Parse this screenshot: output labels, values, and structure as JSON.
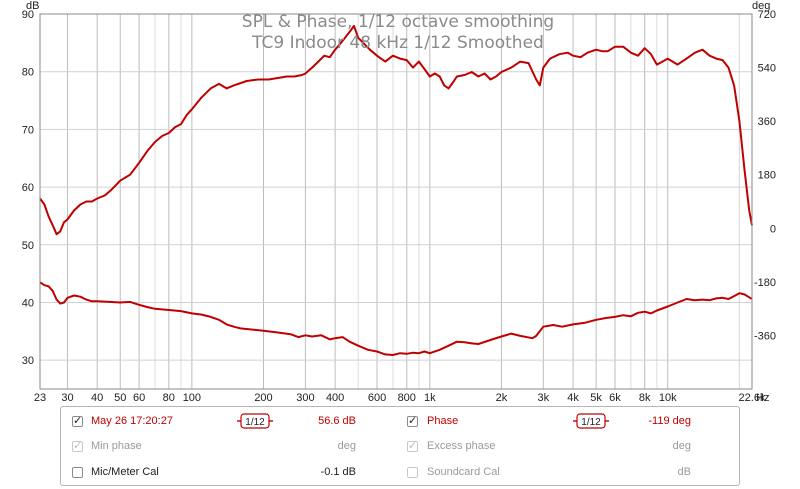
{
  "chart_data": {
    "type": "line",
    "title": "SPL & Phase, 1/12 octave smoothing",
    "subtitle": "TC9 Indoor 48 kHz 1/12 Smoothed",
    "left_axis_unit": "dB",
    "right_axis_unit": "deg",
    "x_unit": "Hz",
    "xscale": "log",
    "xlim": [
      23,
      22600
    ],
    "ylim_left": [
      25,
      90
    ],
    "ylim_right": [
      -540,
      720
    ],
    "grid": true,
    "x_ticks": [
      {
        "v": 23,
        "label": "23"
      },
      {
        "v": 30,
        "label": "30"
      },
      {
        "v": 40,
        "label": "40"
      },
      {
        "v": 50,
        "label": "50"
      },
      {
        "v": 60,
        "label": "60"
      },
      {
        "v": 80,
        "label": "80"
      },
      {
        "v": 100,
        "label": "100"
      },
      {
        "v": 200,
        "label": "200"
      },
      {
        "v": 300,
        "label": "300"
      },
      {
        "v": 400,
        "label": "400"
      },
      {
        "v": 600,
        "label": "600"
      },
      {
        "v": 800,
        "label": "800"
      },
      {
        "v": 1000,
        "label": "1k"
      },
      {
        "v": 2000,
        "label": "2k"
      },
      {
        "v": 3000,
        "label": "3k"
      },
      {
        "v": 4000,
        "label": "4k"
      },
      {
        "v": 5000,
        "label": "5k"
      },
      {
        "v": 6000,
        "label": "6k"
      },
      {
        "v": 8000,
        "label": "8k"
      },
      {
        "v": 10000,
        "label": "10k"
      },
      {
        "v": 22600,
        "label": "22.6k"
      }
    ],
    "y_ticks_left": [
      {
        "v": 30,
        "label": "30"
      },
      {
        "v": 40,
        "label": "40"
      },
      {
        "v": 50,
        "label": "50"
      },
      {
        "v": 60,
        "label": "60"
      },
      {
        "v": 70,
        "label": "70"
      },
      {
        "v": 80,
        "label": "80"
      },
      {
        "v": 90,
        "label": "90"
      }
    ],
    "y_ticks_right": [
      {
        "v": -360,
        "label": "-360"
      },
      {
        "v": -180,
        "label": "-180"
      },
      {
        "v": 0,
        "label": "0"
      },
      {
        "v": 180,
        "label": "180"
      },
      {
        "v": 360,
        "label": "360"
      },
      {
        "v": 540,
        "label": "540"
      },
      {
        "v": 720,
        "label": "720"
      }
    ],
    "series": [
      {
        "axis": "right",
        "color": "#c00000",
        "points": [
          [
            23,
            100
          ],
          [
            24,
            80
          ],
          [
            25,
            40
          ],
          [
            26,
            10
          ],
          [
            27,
            -20
          ],
          [
            28,
            -10
          ],
          [
            29,
            20
          ],
          [
            30,
            30
          ],
          [
            32,
            60
          ],
          [
            34,
            80
          ],
          [
            36,
            90
          ],
          [
            38,
            90
          ],
          [
            40,
            100
          ],
          [
            43,
            110
          ],
          [
            46,
            130
          ],
          [
            50,
            160
          ],
          [
            55,
            180
          ],
          [
            60,
            220
          ],
          [
            65,
            260
          ],
          [
            70,
            290
          ],
          [
            75,
            310
          ],
          [
            80,
            320
          ],
          [
            85,
            340
          ],
          [
            90,
            350
          ],
          [
            95,
            380
          ],
          [
            100,
            400
          ],
          [
            110,
            440
          ],
          [
            120,
            470
          ],
          [
            130,
            485
          ],
          [
            140,
            470
          ],
          [
            150,
            480
          ],
          [
            170,
            495
          ],
          [
            190,
            500
          ],
          [
            210,
            500
          ],
          [
            230,
            505
          ],
          [
            250,
            510
          ],
          [
            270,
            510
          ],
          [
            290,
            515
          ],
          [
            300,
            520
          ],
          [
            320,
            540
          ],
          [
            340,
            560
          ],
          [
            360,
            580
          ],
          [
            380,
            575
          ],
          [
            400,
            600
          ],
          [
            420,
            620
          ],
          [
            440,
            640
          ],
          [
            460,
            660
          ],
          [
            480,
            680
          ],
          [
            500,
            640
          ],
          [
            530,
            620
          ],
          [
            560,
            600
          ],
          [
            600,
            580
          ],
          [
            650,
            560
          ],
          [
            700,
            580
          ],
          [
            750,
            570
          ],
          [
            800,
            565
          ],
          [
            850,
            540
          ],
          [
            900,
            560
          ],
          [
            950,
            535
          ],
          [
            1000,
            510
          ],
          [
            1050,
            520
          ],
          [
            1100,
            510
          ],
          [
            1150,
            480
          ],
          [
            1200,
            470
          ],
          [
            1250,
            490
          ],
          [
            1300,
            510
          ],
          [
            1400,
            515
          ],
          [
            1500,
            525
          ],
          [
            1600,
            510
          ],
          [
            1700,
            520
          ],
          [
            1800,
            500
          ],
          [
            1900,
            510
          ],
          [
            2000,
            525
          ],
          [
            2200,
            540
          ],
          [
            2400,
            560
          ],
          [
            2600,
            555
          ],
          [
            2800,
            500
          ],
          [
            2900,
            480
          ],
          [
            3000,
            540
          ],
          [
            3200,
            570
          ],
          [
            3500,
            585
          ],
          [
            3800,
            590
          ],
          [
            4000,
            580
          ],
          [
            4300,
            575
          ],
          [
            4600,
            590
          ],
          [
            5000,
            600
          ],
          [
            5300,
            595
          ],
          [
            5600,
            595
          ],
          [
            6000,
            610
          ],
          [
            6500,
            610
          ],
          [
            7000,
            590
          ],
          [
            7500,
            580
          ],
          [
            8000,
            605
          ],
          [
            8500,
            585
          ],
          [
            9000,
            550
          ],
          [
            9500,
            560
          ],
          [
            10000,
            570
          ],
          [
            11000,
            550
          ],
          [
            12000,
            570
          ],
          [
            13000,
            590
          ],
          [
            14000,
            600
          ],
          [
            15000,
            580
          ],
          [
            16000,
            570
          ],
          [
            17000,
            565
          ],
          [
            18000,
            540
          ],
          [
            19000,
            480
          ],
          [
            20000,
            360
          ],
          [
            21000,
            200
          ],
          [
            22000,
            60
          ],
          [
            22600,
            10
          ]
        ]
      },
      {
        "axis": "left",
        "color": "#c00000",
        "points": [
          [
            23,
            43.5
          ],
          [
            24,
            43
          ],
          [
            25,
            42.8
          ],
          [
            26,
            42
          ],
          [
            27,
            40.5
          ],
          [
            28,
            39.8
          ],
          [
            29,
            40
          ],
          [
            30,
            40.8
          ],
          [
            32,
            41.2
          ],
          [
            34,
            41
          ],
          [
            36,
            40.5
          ],
          [
            38,
            40.2
          ],
          [
            40,
            40.2
          ],
          [
            45,
            40.1
          ],
          [
            50,
            40
          ],
          [
            55,
            40.1
          ],
          [
            60,
            39.6
          ],
          [
            65,
            39.2
          ],
          [
            70,
            38.9
          ],
          [
            80,
            38.7
          ],
          [
            90,
            38.5
          ],
          [
            100,
            38.1
          ],
          [
            110,
            37.9
          ],
          [
            120,
            37.5
          ],
          [
            130,
            37
          ],
          [
            140,
            36.2
          ],
          [
            150,
            35.8
          ],
          [
            160,
            35.5
          ],
          [
            180,
            35.3
          ],
          [
            200,
            35.1
          ],
          [
            230,
            34.8
          ],
          [
            260,
            34.5
          ],
          [
            280,
            34
          ],
          [
            300,
            34.3
          ],
          [
            320,
            34.1
          ],
          [
            350,
            34.3
          ],
          [
            380,
            33.6
          ],
          [
            400,
            33.8
          ],
          [
            430,
            34
          ],
          [
            460,
            33.2
          ],
          [
            500,
            32.5
          ],
          [
            550,
            31.8
          ],
          [
            600,
            31.5
          ],
          [
            650,
            31
          ],
          [
            700,
            30.9
          ],
          [
            750,
            31.2
          ],
          [
            800,
            31.1
          ],
          [
            850,
            31.3
          ],
          [
            900,
            31.2
          ],
          [
            950,
            31.5
          ],
          [
            1000,
            31.2
          ],
          [
            1100,
            31.8
          ],
          [
            1200,
            32.5
          ],
          [
            1300,
            33.2
          ],
          [
            1400,
            33.1
          ],
          [
            1500,
            32.9
          ],
          [
            1600,
            32.8
          ],
          [
            1800,
            33.5
          ],
          [
            2000,
            34.1
          ],
          [
            2200,
            34.6
          ],
          [
            2400,
            34.2
          ],
          [
            2700,
            33.8
          ],
          [
            2800,
            34.2
          ],
          [
            3000,
            35.8
          ],
          [
            3300,
            36.1
          ],
          [
            3600,
            35.8
          ],
          [
            4000,
            36.2
          ],
          [
            4500,
            36.5
          ],
          [
            5000,
            37
          ],
          [
            5500,
            37.3
          ],
          [
            6000,
            37.5
          ],
          [
            6500,
            37.8
          ],
          [
            7000,
            37.6
          ],
          [
            7500,
            38.2
          ],
          [
            8000,
            38.4
          ],
          [
            8500,
            38.1
          ],
          [
            9000,
            38.6
          ],
          [
            10000,
            39.3
          ],
          [
            11000,
            40
          ],
          [
            12000,
            40.6
          ],
          [
            13000,
            40.4
          ],
          [
            14000,
            40.5
          ],
          [
            15000,
            40.4
          ],
          [
            16000,
            40.7
          ],
          [
            17000,
            40.8
          ],
          [
            18000,
            40.6
          ],
          [
            19000,
            41.1
          ],
          [
            20000,
            41.6
          ],
          [
            21000,
            41.4
          ],
          [
            22000,
            40.9
          ],
          [
            22600,
            40.6
          ]
        ]
      }
    ]
  },
  "legend": {
    "rows": [
      {
        "left": {
          "checked": true,
          "enabled": true,
          "label": "May 26 17:20:27",
          "label_color": "red",
          "smoothing": "1/12",
          "value": "56.6 dB",
          "value_color": "red"
        },
        "right": {
          "checked": true,
          "enabled": true,
          "label": "Phase",
          "label_color": "red",
          "smoothing": "1/12",
          "value": "-119 deg",
          "value_color": "red"
        }
      },
      {
        "left": {
          "checked": true,
          "enabled": false,
          "label": "Min phase",
          "label_color": "gray",
          "smoothing": "",
          "value": "deg",
          "value_color": "gray"
        },
        "right": {
          "checked": true,
          "enabled": false,
          "label": "Excess phase",
          "label_color": "gray",
          "smoothing": "",
          "value": "deg",
          "value_color": "gray"
        }
      },
      {
        "left": {
          "checked": false,
          "enabled": true,
          "label": "Mic/Meter Cal",
          "label_color": "dark",
          "smoothing": "",
          "value": "-0.1 dB",
          "value_color": "dark"
        },
        "right": {
          "checked": false,
          "enabled": false,
          "label": "Soundcard Cal",
          "label_color": "gray",
          "smoothing": "",
          "value": "dB",
          "value_color": "gray"
        }
      }
    ]
  }
}
